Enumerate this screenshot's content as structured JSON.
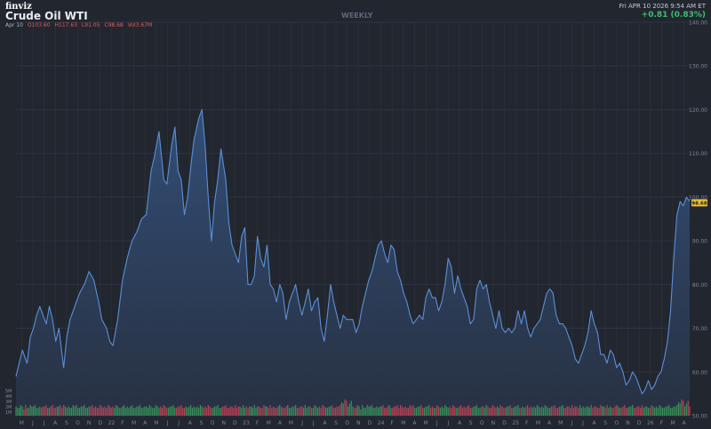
{
  "header": {
    "logo": "finviz",
    "title": "Crude Oil WTI",
    "period": "WEEKLY",
    "datetime": "Fri APR 10 2026 9:54 AM ET",
    "change": "+0.81 (0.83%)",
    "ohlc": {
      "date": "Apr 10",
      "open": "O103.60",
      "high": "H117.63",
      "low": "L91.05",
      "close": "C98.68",
      "vol": "Vol3.67M"
    }
  },
  "colors": {
    "background": "#22262f",
    "line": "#5b8fd6",
    "area_top": "#33507a",
    "area_bottom": "#283244",
    "grid": "#2f3440",
    "axis_text": "#7e8694",
    "vol_up": "#3a9e5c",
    "vol_down": "#c9455a",
    "price_badge": "#f2c12e",
    "change_up": "#3cbf6e"
  },
  "chart_data": {
    "type": "area",
    "ylim": [
      50,
      140
    ],
    "y_ticks": [
      "140.00",
      "130.00",
      "120.00",
      "110.00",
      "100.00",
      "90.00",
      "80.00",
      "70.00",
      "60.00",
      "50.00"
    ],
    "x_tick_labels": [
      "M",
      "J",
      "J",
      "A",
      "S",
      "O",
      "N",
      "D",
      "22",
      "F",
      "M",
      "A",
      "M",
      "J",
      "J",
      "A",
      "S",
      "O",
      "N",
      "D",
      "23",
      "F",
      "M",
      "A",
      "M",
      "J",
      "J",
      "A",
      "S",
      "O",
      "N",
      "D",
      "24",
      "F",
      "M",
      "A",
      "M",
      "J",
      "J",
      "A",
      "S",
      "O",
      "N",
      "D",
      "25",
      "F",
      "M",
      "A",
      "M",
      "J",
      "J",
      "A",
      "S",
      "O",
      "N",
      "D",
      "26",
      "F",
      "M",
      "A"
    ],
    "last_price": "98.68",
    "vol_ticks": [
      "5M",
      "4M",
      "3M",
      "2M",
      "1M"
    ],
    "anchors": [
      [
        0,
        59
      ],
      [
        2,
        62
      ],
      [
        4,
        65
      ],
      [
        7,
        62
      ],
      [
        9,
        68
      ],
      [
        11,
        70
      ],
      [
        13,
        73
      ],
      [
        15,
        75
      ],
      [
        17,
        73
      ],
      [
        19,
        71
      ],
      [
        21,
        75
      ],
      [
        23,
        72
      ],
      [
        25,
        67
      ],
      [
        27,
        70
      ],
      [
        29,
        64
      ],
      [
        30,
        61
      ],
      [
        32,
        68
      ],
      [
        34,
        72
      ],
      [
        37,
        75
      ],
      [
        40,
        78
      ],
      [
        43,
        80
      ],
      [
        46,
        83
      ],
      [
        49,
        81
      ],
      [
        52,
        76
      ],
      [
        54,
        72
      ],
      [
        57,
        70
      ],
      [
        59,
        67
      ],
      [
        61,
        66
      ],
      [
        64,
        72
      ],
      [
        67,
        81
      ],
      [
        70,
        86
      ],
      [
        73,
        90
      ],
      [
        76,
        92
      ],
      [
        79,
        95
      ],
      [
        82,
        96
      ],
      [
        85,
        106
      ],
      [
        87,
        109
      ],
      [
        90,
        115
      ],
      [
        93,
        104
      ],
      [
        95,
        103
      ],
      [
        98,
        112
      ],
      [
        100,
        116
      ],
      [
        102,
        106
      ],
      [
        104,
        104
      ],
      [
        106,
        96
      ],
      [
        108,
        100
      ],
      [
        110,
        107
      ],
      [
        112,
        113
      ],
      [
        115,
        118
      ],
      [
        117,
        120
      ],
      [
        119,
        112
      ],
      [
        121,
        100
      ],
      [
        123,
        90
      ],
      [
        125,
        99
      ],
      [
        127,
        104
      ],
      [
        129,
        111
      ],
      [
        132,
        104
      ],
      [
        134,
        94
      ],
      [
        136,
        89
      ],
      [
        138,
        87
      ],
      [
        140,
        85
      ],
      [
        142,
        91
      ],
      [
        144,
        93
      ],
      [
        146,
        80
      ],
      [
        148,
        80
      ],
      [
        150,
        82
      ],
      [
        152,
        91
      ],
      [
        154,
        86
      ],
      [
        156,
        84
      ],
      [
        158,
        89
      ],
      [
        160,
        80
      ],
      [
        162,
        79
      ],
      [
        164,
        76
      ],
      [
        166,
        80
      ],
      [
        168,
        78
      ],
      [
        170,
        72
      ],
      [
        172,
        76
      ],
      [
        174,
        78
      ],
      [
        176,
        80
      ],
      [
        178,
        76
      ],
      [
        180,
        73
      ],
      [
        182,
        76
      ],
      [
        184,
        79
      ],
      [
        186,
        74
      ],
      [
        188,
        76
      ],
      [
        190,
        77
      ],
      [
        192,
        70
      ],
      [
        194,
        67
      ],
      [
        196,
        73
      ],
      [
        198,
        80
      ],
      [
        200,
        76
      ],
      [
        202,
        73
      ],
      [
        204,
        70
      ],
      [
        206,
        73
      ],
      [
        208,
        72
      ],
      [
        210,
        72
      ],
      [
        212,
        72
      ],
      [
        214,
        69
      ],
      [
        216,
        71
      ],
      [
        218,
        75
      ],
      [
        220,
        78
      ],
      [
        222,
        81
      ],
      [
        224,
        83
      ],
      [
        226,
        86
      ],
      [
        228,
        89
      ],
      [
        230,
        90
      ],
      [
        232,
        87
      ],
      [
        234,
        85
      ],
      [
        236,
        89
      ],
      [
        238,
        88
      ],
      [
        240,
        83
      ],
      [
        242,
        81
      ],
      [
        244,
        78
      ],
      [
        246,
        76
      ],
      [
        248,
        73
      ],
      [
        250,
        71
      ],
      [
        252,
        72
      ],
      [
        254,
        73
      ],
      [
        256,
        72
      ],
      [
        258,
        77
      ],
      [
        260,
        79
      ],
      [
        262,
        77
      ],
      [
        264,
        77
      ],
      [
        266,
        74
      ],
      [
        268,
        76
      ],
      [
        270,
        80
      ],
      [
        272,
        86
      ],
      [
        274,
        84
      ],
      [
        276,
        78
      ],
      [
        278,
        82
      ],
      [
        280,
        79
      ],
      [
        282,
        77
      ],
      [
        284,
        75
      ],
      [
        286,
        71
      ],
      [
        288,
        72
      ],
      [
        290,
        79
      ],
      [
        292,
        81
      ],
      [
        294,
        79
      ],
      [
        296,
        80
      ],
      [
        298,
        76
      ],
      [
        300,
        73
      ],
      [
        302,
        70
      ],
      [
        304,
        74
      ],
      [
        306,
        70
      ],
      [
        308,
        69
      ],
      [
        310,
        70
      ],
      [
        312,
        69
      ],
      [
        314,
        70
      ],
      [
        316,
        74
      ],
      [
        318,
        71
      ],
      [
        320,
        74
      ],
      [
        322,
        70
      ],
      [
        324,
        68
      ],
      [
        326,
        70
      ],
      [
        328,
        71
      ],
      [
        330,
        72
      ],
      [
        332,
        75
      ],
      [
        334,
        78
      ],
      [
        336,
        79
      ],
      [
        338,
        78
      ],
      [
        340,
        73
      ],
      [
        342,
        71
      ],
      [
        344,
        71
      ],
      [
        346,
        70
      ],
      [
        348,
        68
      ],
      [
        350,
        66
      ],
      [
        352,
        63
      ],
      [
        354,
        62
      ],
      [
        356,
        64
      ],
      [
        358,
        66
      ],
      [
        360,
        69
      ],
      [
        362,
        74
      ],
      [
        364,
        71
      ],
      [
        366,
        69
      ],
      [
        368,
        64
      ],
      [
        370,
        64
      ],
      [
        372,
        62
      ],
      [
        374,
        65
      ],
      [
        376,
        64
      ],
      [
        378,
        61
      ],
      [
        380,
        62
      ],
      [
        382,
        60
      ],
      [
        384,
        57
      ],
      [
        386,
        58
      ],
      [
        388,
        60
      ],
      [
        390,
        59
      ],
      [
        392,
        57
      ],
      [
        394,
        55
      ],
      [
        396,
        56
      ],
      [
        398,
        58
      ],
      [
        400,
        56
      ],
      [
        402,
        57
      ],
      [
        404,
        59
      ],
      [
        406,
        60
      ],
      [
        408,
        63
      ],
      [
        410,
        67
      ],
      [
        412,
        74
      ],
      [
        414,
        86
      ],
      [
        416,
        96
      ],
      [
        418,
        99
      ],
      [
        420,
        98
      ],
      [
        422,
        100
      ],
      [
        424,
        99
      ]
    ],
    "volume_bars": [
      [
        6,
        4
      ],
      [
        5,
        3
      ],
      [
        4,
        3
      ],
      [
        3,
        5
      ],
      [
        2,
        4
      ],
      [
        1,
        2
      ],
      [
        0,
        5
      ],
      [
        7,
        3
      ],
      [
        5,
        3
      ],
      [
        4,
        5
      ],
      [
        3,
        4
      ],
      [
        6,
        4
      ],
      [
        2,
        5
      ],
      [
        1,
        3
      ],
      [
        0,
        3
      ],
      [
        7,
        4
      ],
      [
        6,
        3
      ],
      [
        5,
        4
      ],
      [
        4,
        4
      ],
      [
        3,
        5
      ],
      [
        2,
        3
      ],
      [
        1,
        3
      ],
      [
        0,
        4
      ],
      [
        7,
        5
      ],
      [
        6,
        3
      ],
      [
        5,
        3
      ],
      [
        4,
        4
      ],
      [
        3,
        4
      ],
      [
        2,
        5
      ],
      [
        1,
        3
      ],
      [
        0,
        5
      ],
      [
        7,
        4
      ],
      [
        6,
        3
      ],
      [
        5,
        4
      ],
      [
        4,
        3
      ],
      [
        3,
        3
      ],
      [
        2,
        5
      ],
      [
        1,
        4
      ],
      [
        0,
        5
      ],
      [
        7,
        3
      ],
      [
        6,
        3
      ],
      [
        5,
        4
      ],
      [
        4,
        4
      ],
      [
        3,
        5
      ],
      [
        2,
        3
      ],
      [
        1,
        3
      ],
      [
        0,
        4
      ],
      [
        7,
        4
      ],
      [
        6,
        5
      ],
      [
        5,
        3
      ],
      [
        4,
        4
      ],
      [
        3,
        3
      ],
      [
        2,
        3
      ],
      [
        1,
        5
      ],
      [
        0,
        4
      ],
      [
        7,
        3
      ],
      [
        6,
        4
      ],
      [
        5,
        3
      ],
      [
        4,
        5
      ],
      [
        3,
        4
      ],
      [
        2,
        3
      ],
      [
        1,
        4
      ],
      [
        0,
        3
      ],
      [
        7,
        5
      ],
      [
        6,
        4
      ],
      [
        5,
        3
      ],
      [
        4,
        3
      ],
      [
        3,
        4
      ],
      [
        2,
        5
      ],
      [
        1,
        3
      ],
      [
        0,
        4
      ],
      [
        7,
        3
      ],
      [
        6,
        4
      ],
      [
        5,
        5
      ],
      [
        4,
        3
      ],
      [
        3,
        3
      ],
      [
        2,
        4
      ],
      [
        1,
        4
      ],
      [
        0,
        5
      ],
      [
        7,
        3
      ],
      [
        6,
        3
      ],
      [
        5,
        4
      ],
      [
        4,
        4
      ],
      [
        3,
        3
      ],
      [
        2,
        5
      ],
      [
        1,
        4
      ],
      [
        0,
        3
      ],
      [
        7,
        3
      ],
      [
        6,
        5
      ],
      [
        5,
        4
      ],
      [
        4,
        3
      ],
      [
        3,
        4
      ],
      [
        2,
        3
      ],
      [
        1,
        5
      ],
      [
        0,
        4
      ],
      [
        7,
        3
      ],
      [
        6,
        3
      ],
      [
        5,
        4
      ],
      [
        4,
        4
      ],
      [
        3,
        5
      ],
      [
        2,
        3
      ],
      [
        1,
        3
      ],
      [
        0,
        4
      ],
      [
        7,
        4
      ],
      [
        6,
        5
      ],
      [
        5,
        3
      ],
      [
        4,
        3
      ],
      [
        3,
        4
      ],
      [
        2,
        3
      ],
      [
        1,
        4
      ],
      [
        0,
        5
      ],
      [
        7,
        3
      ],
      [
        6,
        4
      ],
      [
        5,
        3
      ],
      [
        4,
        4
      ],
      [
        3,
        3
      ],
      [
        2,
        5
      ],
      [
        1,
        4
      ],
      [
        0,
        3
      ],
      [
        7,
        4
      ],
      [
        6,
        3
      ],
      [
        5,
        5
      ],
      [
        4,
        4
      ],
      [
        3,
        3
      ],
      [
        2,
        3
      ],
      [
        1,
        4
      ],
      [
        0,
        4
      ],
      [
        7,
        5
      ],
      [
        6,
        3
      ],
      [
        5,
        3
      ],
      [
        4,
        4
      ],
      [
        3,
        4
      ],
      [
        2,
        5
      ],
      [
        1,
        3
      ],
      [
        0,
        3
      ],
      [
        7,
        4
      ],
      [
        6,
        4
      ],
      [
        5,
        3
      ],
      [
        4,
        5
      ],
      [
        3,
        3
      ],
      [
        2,
        4
      ],
      [
        1,
        4
      ],
      [
        0,
        3
      ],
      [
        7,
        5
      ],
      [
        6,
        3
      ],
      [
        5,
        4
      ],
      [
        4,
        3
      ],
      [
        3,
        4
      ],
      [
        2,
        4
      ],
      [
        1,
        3
      ],
      [
        0,
        5
      ],
      [
        7,
        3
      ],
      [
        6,
        4
      ],
      [
        5,
        4
      ],
      [
        4,
        3
      ],
      [
        3,
        3
      ],
      [
        2,
        5
      ],
      [
        1,
        4
      ],
      [
        0,
        4
      ],
      [
        7,
        3
      ],
      [
        6,
        5
      ],
      [
        5,
        3
      ],
      [
        4,
        4
      ],
      [
        3,
        3
      ],
      [
        2,
        3
      ],
      [
        1,
        4
      ],
      [
        0,
        5
      ],
      [
        7,
        4
      ],
      [
        6,
        3
      ],
      [
        5,
        3
      ],
      [
        4,
        4
      ],
      [
        3,
        5
      ],
      [
        2,
        3
      ],
      [
        1,
        3
      ],
      [
        0,
        4
      ],
      [
        7,
        4
      ],
      [
        6,
        5
      ],
      [
        5,
        3
      ],
      [
        4,
        3
      ],
      [
        3,
        4
      ],
      [
        2,
        4
      ],
      [
        1,
        3
      ],
      [
        0,
        5
      ],
      [
        7,
        3
      ],
      [
        6,
        4
      ],
      [
        5,
        4
      ],
      [
        4,
        3
      ],
      [
        3,
        3
      ],
      [
        2,
        5
      ],
      [
        1,
        4
      ],
      [
        0,
        3
      ],
      [
        7,
        4
      ],
      [
        6,
        3
      ],
      [
        5,
        5
      ],
      [
        4,
        4
      ],
      [
        3,
        3
      ],
      [
        2,
        3
      ],
      [
        1,
        4
      ],
      [
        0,
        4
      ],
      [
        7,
        5
      ],
      [
        6,
        3
      ],
      [
        5,
        3
      ],
      [
        4,
        4
      ],
      [
        3,
        4
      ],
      [
        2,
        5
      ],
      [
        1,
        7
      ],
      [
        0,
        6
      ],
      [
        7,
        9
      ],
      [
        6,
        8
      ],
      [
        5,
        4
      ],
      [
        4,
        6
      ],
      [
        3,
        8
      ]
    ]
  }
}
